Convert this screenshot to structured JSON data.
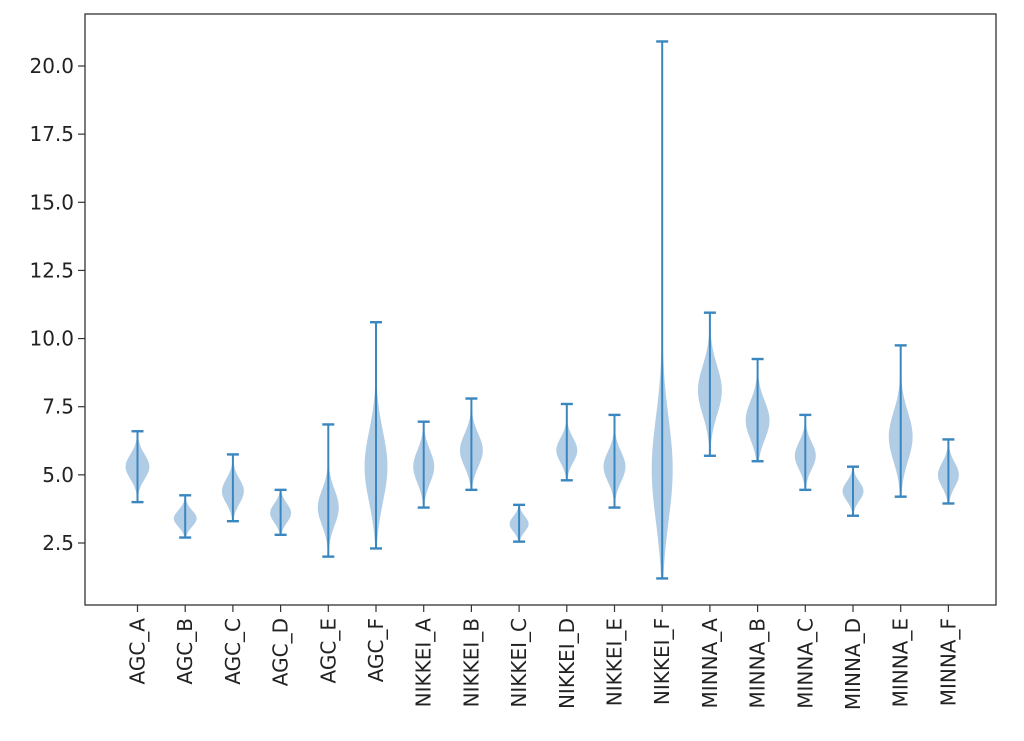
{
  "chart_data": {
    "type": "violin",
    "title": "",
    "xlabel": "",
    "ylabel": "",
    "categories": [
      "AGC_A",
      "AGC_B",
      "AGC_C",
      "AGC_D",
      "AGC_E",
      "AGC_F",
      "NIKKEI_A",
      "NIKKEI_B",
      "NIKKEI_C",
      "NIKKEI_D",
      "NIKKEI_E",
      "NIKKEI_F",
      "MINNA_A",
      "MINNA_B",
      "MINNA_C",
      "MINNA_D",
      "MINNA_E",
      "MINNA_F"
    ],
    "yticks": [
      2.5,
      5.0,
      7.5,
      10.0,
      12.5,
      15.0,
      17.5,
      20.0
    ],
    "ytick_labels": [
      "2.5",
      "5.0",
      "7.5",
      "10.0",
      "12.5",
      "15.0",
      "17.5",
      "20.0"
    ],
    "ylim": [
      0.0,
      22.0
    ],
    "violins": [
      {
        "name": "AGC_A",
        "min": 4.0,
        "max": 6.6,
        "mode": 5.3,
        "spread": 0.45,
        "peak_half_width": 0.25
      },
      {
        "name": "AGC_B",
        "min": 2.7,
        "max": 4.25,
        "mode": 3.4,
        "spread": 0.3,
        "peak_half_width": 0.24
      },
      {
        "name": "AGC_C",
        "min": 3.3,
        "max": 5.75,
        "mode": 4.4,
        "spread": 0.45,
        "peak_half_width": 0.23
      },
      {
        "name": "AGC_D",
        "min": 2.8,
        "max": 4.45,
        "mode": 3.6,
        "spread": 0.35,
        "peak_half_width": 0.22
      },
      {
        "name": "AGC_E",
        "min": 2.0,
        "max": 6.85,
        "mode": 3.8,
        "spread": 0.65,
        "peak_half_width": 0.22
      },
      {
        "name": "AGC_F",
        "min": 2.3,
        "max": 10.6,
        "mode": 5.3,
        "spread": 1.3,
        "peak_half_width": 0.24
      },
      {
        "name": "NIKKEI_A",
        "min": 3.8,
        "max": 6.95,
        "mode": 5.3,
        "spread": 0.6,
        "peak_half_width": 0.22
      },
      {
        "name": "NIKKEI_B",
        "min": 4.45,
        "max": 7.8,
        "mode": 5.9,
        "spread": 0.6,
        "peak_half_width": 0.24
      },
      {
        "name": "NIKKEI_C",
        "min": 2.55,
        "max": 3.9,
        "mode": 3.2,
        "spread": 0.28,
        "peak_half_width": 0.2
      },
      {
        "name": "NIKKEI_D",
        "min": 4.8,
        "max": 7.6,
        "mode": 5.9,
        "spread": 0.45,
        "peak_half_width": 0.22
      },
      {
        "name": "NIKKEI_E",
        "min": 3.8,
        "max": 7.2,
        "mode": 5.3,
        "spread": 0.55,
        "peak_half_width": 0.23
      },
      {
        "name": "NIKKEI_F",
        "min": 1.2,
        "max": 20.9,
        "mode": 5.2,
        "spread": 1.9,
        "peak_half_width": 0.22
      },
      {
        "name": "MINNA_A",
        "min": 5.7,
        "max": 10.95,
        "mode": 8.1,
        "spread": 0.9,
        "peak_half_width": 0.25
      },
      {
        "name": "MINNA_B",
        "min": 5.5,
        "max": 9.25,
        "mode": 7.0,
        "spread": 0.7,
        "peak_half_width": 0.25
      },
      {
        "name": "MINNA_C",
        "min": 4.45,
        "max": 7.2,
        "mode": 5.7,
        "spread": 0.5,
        "peak_half_width": 0.22
      },
      {
        "name": "MINNA_D",
        "min": 3.5,
        "max": 5.3,
        "mode": 4.4,
        "spread": 0.35,
        "peak_half_width": 0.22
      },
      {
        "name": "MINNA_E",
        "min": 4.2,
        "max": 9.75,
        "mode": 6.4,
        "spread": 0.9,
        "peak_half_width": 0.25
      },
      {
        "name": "MINNA_F",
        "min": 3.95,
        "max": 6.3,
        "mode": 5.0,
        "spread": 0.45,
        "peak_half_width": 0.22
      }
    ],
    "colors": {
      "body": "#a8c8e2",
      "line": "#3a86bf",
      "axis": "#333333"
    },
    "grid": false,
    "legend": "none"
  }
}
